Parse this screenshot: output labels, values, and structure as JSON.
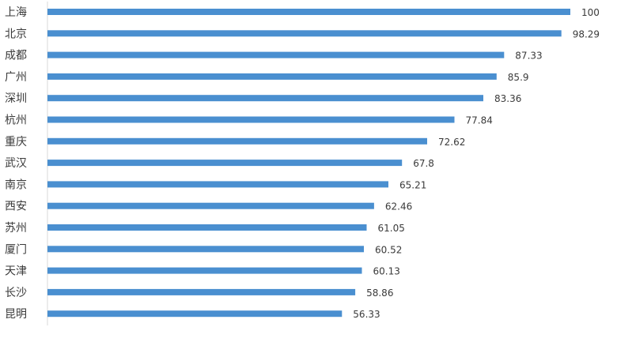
{
  "chart_data": {
    "type": "bar",
    "orientation": "horizontal",
    "categories": [
      "上海",
      "北京",
      "成都",
      "广州",
      "深圳",
      "杭州",
      "重庆",
      "武汉",
      "南京",
      "西安",
      "苏州",
      "厦门",
      "天津",
      "长沙",
      "昆明"
    ],
    "value_labels": [
      "100",
      "98.29",
      "87.33",
      "85.9",
      "83.36",
      "77.84",
      "72.62",
      "67.8",
      "65.21",
      "62.46",
      "61.05",
      "60.52",
      "60.13",
      "58.86",
      "56.33"
    ],
    "values": [
      100,
      98.29,
      87.33,
      85.9,
      83.36,
      77.84,
      72.62,
      67.8,
      65.21,
      62.46,
      61.05,
      60.52,
      60.13,
      58.86,
      56.33
    ],
    "xlim": [
      0,
      100
    ],
    "title": "",
    "xlabel": "",
    "ylabel": "",
    "grid": false,
    "legend": "none",
    "bar_color": "#4a8fd0",
    "axis_color": "#d9d9d9",
    "label_color": "#3a3a3a"
  }
}
